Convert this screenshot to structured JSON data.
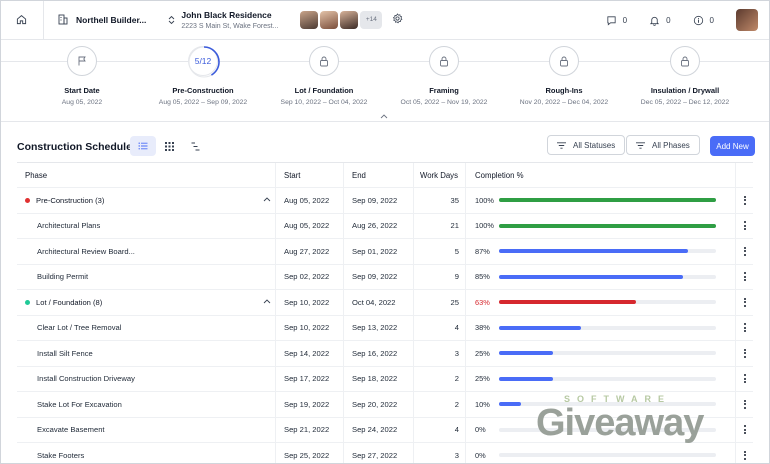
{
  "header": {
    "company": "Northell Builder...",
    "project_title": "John Black Residence",
    "project_address": "2223 S Main St, Wake Forest...",
    "member_extra": "+14",
    "messages": "0",
    "notifications": "0",
    "info": "0"
  },
  "phases": [
    {
      "label": "Start Date",
      "dates": "Aug 05, 2022",
      "icon": "flag-icon"
    },
    {
      "label": "Pre-Construction",
      "dates": "Aug 05, 2022 – Sep 09, 2022",
      "progress": "5/12",
      "progress_fraction": 0.4167
    },
    {
      "label": "Lot / Foundation",
      "dates": "Sep 10, 2022 – Oct 04, 2022",
      "icon": "lock-icon"
    },
    {
      "label": "Framing",
      "dates": "Oct 05, 2022 – Nov 19, 2022",
      "icon": "lock-icon"
    },
    {
      "label": "Rough-Ins",
      "dates": "Nov 20, 2022 – Dec 04, 2022",
      "icon": "lock-icon"
    },
    {
      "label": "Insulation / Drywall",
      "dates": "Dec 05, 2022 – Dec 12, 2022",
      "icon": "lock-icon"
    }
  ],
  "toolbar": {
    "title": "Construction Schedule",
    "all_statuses": "All Statuses",
    "all_phases": "All Phases",
    "add_new": "Add New"
  },
  "table": {
    "columns": {
      "phase": "Phase",
      "start": "Start",
      "end": "End",
      "days": "Work Days",
      "completion": "Completion %"
    },
    "rows": [
      {
        "type": "group",
        "name": "Pre-Construction (3)",
        "dot": "#e03131",
        "start": "Aug 05, 2022",
        "end": "Sep 09, 2022",
        "days": "35",
        "pct": "100%",
        "value": 1.0,
        "color": "#2f9e44",
        "pct_color": "#1f2937"
      },
      {
        "type": "child",
        "name": "Architectural Plans",
        "start": "Aug 05, 2022",
        "end": "Aug 26, 2022",
        "days": "21",
        "pct": "100%",
        "value": 1.0,
        "color": "#2f9e44",
        "pct_color": "#1f2937"
      },
      {
        "type": "child",
        "name": "Architectural Review Board...",
        "start": "Aug 27, 2022",
        "end": "Sep 01, 2022",
        "days": "5",
        "pct": "87%",
        "value": 0.87,
        "color": "#4a6cf7",
        "pct_color": "#1f2937"
      },
      {
        "type": "child",
        "name": "Building Permit",
        "start": "Sep 02, 2022",
        "end": "Sep 09, 2022",
        "days": "9",
        "pct": "85%",
        "value": 0.85,
        "color": "#4a6cf7",
        "pct_color": "#1f2937"
      },
      {
        "type": "group",
        "name": "Lot / Foundation (8)",
        "dot": "#20c997",
        "start": "Sep 10, 2022",
        "end": "Oct 04, 2022",
        "days": "25",
        "pct": "63%",
        "value": 0.63,
        "color": "#d6282e",
        "pct_color": "#d6282e"
      },
      {
        "type": "child",
        "name": "Clear Lot / Tree Removal",
        "start": "Sep 10, 2022",
        "end": "Sep 13, 2022",
        "days": "4",
        "pct": "38%",
        "value": 0.38,
        "color": "#4a6cf7",
        "pct_color": "#1f2937"
      },
      {
        "type": "child",
        "name": "Install Silt Fence",
        "start": "Sep 14, 2022",
        "end": "Sep 16, 2022",
        "days": "3",
        "pct": "25%",
        "value": 0.25,
        "color": "#4a6cf7",
        "pct_color": "#1f2937"
      },
      {
        "type": "child",
        "name": "Install Construction Driveway",
        "start": "Sep 17, 2022",
        "end": "Sep 18, 2022",
        "days": "2",
        "pct": "25%",
        "value": 0.25,
        "color": "#4a6cf7",
        "pct_color": "#1f2937"
      },
      {
        "type": "child",
        "name": "Stake Lot For Excavation",
        "start": "Sep 19, 2022",
        "end": "Sep 20, 2022",
        "days": "2",
        "pct": "10%",
        "value": 0.1,
        "color": "#4a6cf7",
        "pct_color": "#1f2937"
      },
      {
        "type": "child",
        "name": "Excavate Basement",
        "start": "Sep 21, 2022",
        "end": "Sep 24, 2022",
        "days": "4",
        "pct": "0%",
        "value": 0.0,
        "color": "#4a6cf7",
        "pct_color": "#1f2937"
      },
      {
        "type": "child",
        "name": "Stake Footers",
        "start": "Sep 25, 2022",
        "end": "Sep 27, 2022",
        "days": "3",
        "pct": "0%",
        "value": 0.0,
        "color": "#4a6cf7",
        "pct_color": "#1f2937"
      }
    ]
  },
  "watermark": {
    "top": "SOFTWARE",
    "main": "Giveaway"
  }
}
